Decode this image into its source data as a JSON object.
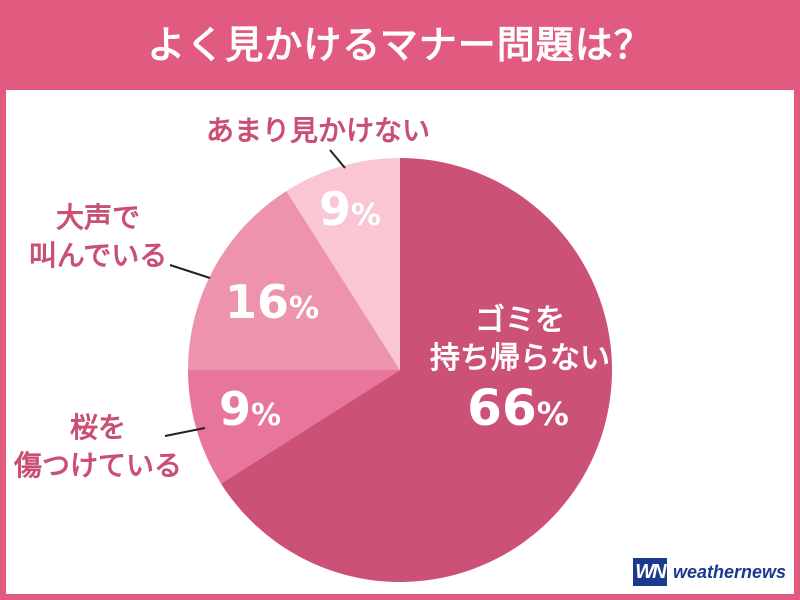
{
  "title": "よく見かけるマナー問題は？",
  "logo": {
    "mark": "WN",
    "text": "weathernews"
  },
  "colors": {
    "frame": "#e15a7f",
    "label_text": "#c94f73",
    "slice_1": "#cc5176",
    "slice_2": "#e8769c",
    "slice_3": "#ee93ac",
    "slice_4": "#fbc6d4"
  },
  "chart_data": {
    "type": "pie",
    "title": "よく見かけるマナー問題は？",
    "slices": [
      {
        "label": "ゴミを持ち帰らない",
        "label_lines": [
          "ゴミを",
          "持ち帰らない"
        ],
        "value": 66,
        "display": "66%"
      },
      {
        "label": "桜を傷つけている",
        "label_lines": [
          "桜を",
          "傷つけている"
        ],
        "value": 9,
        "display": "9%"
      },
      {
        "label": "大声で叫んでいる",
        "label_lines": [
          "大声で",
          "叫んでいる"
        ],
        "value": 16,
        "display": "16%"
      },
      {
        "label": "あまり見かけない",
        "label_lines": [
          "あまり見かけない"
        ],
        "value": 9,
        "display": "9%"
      }
    ]
  }
}
